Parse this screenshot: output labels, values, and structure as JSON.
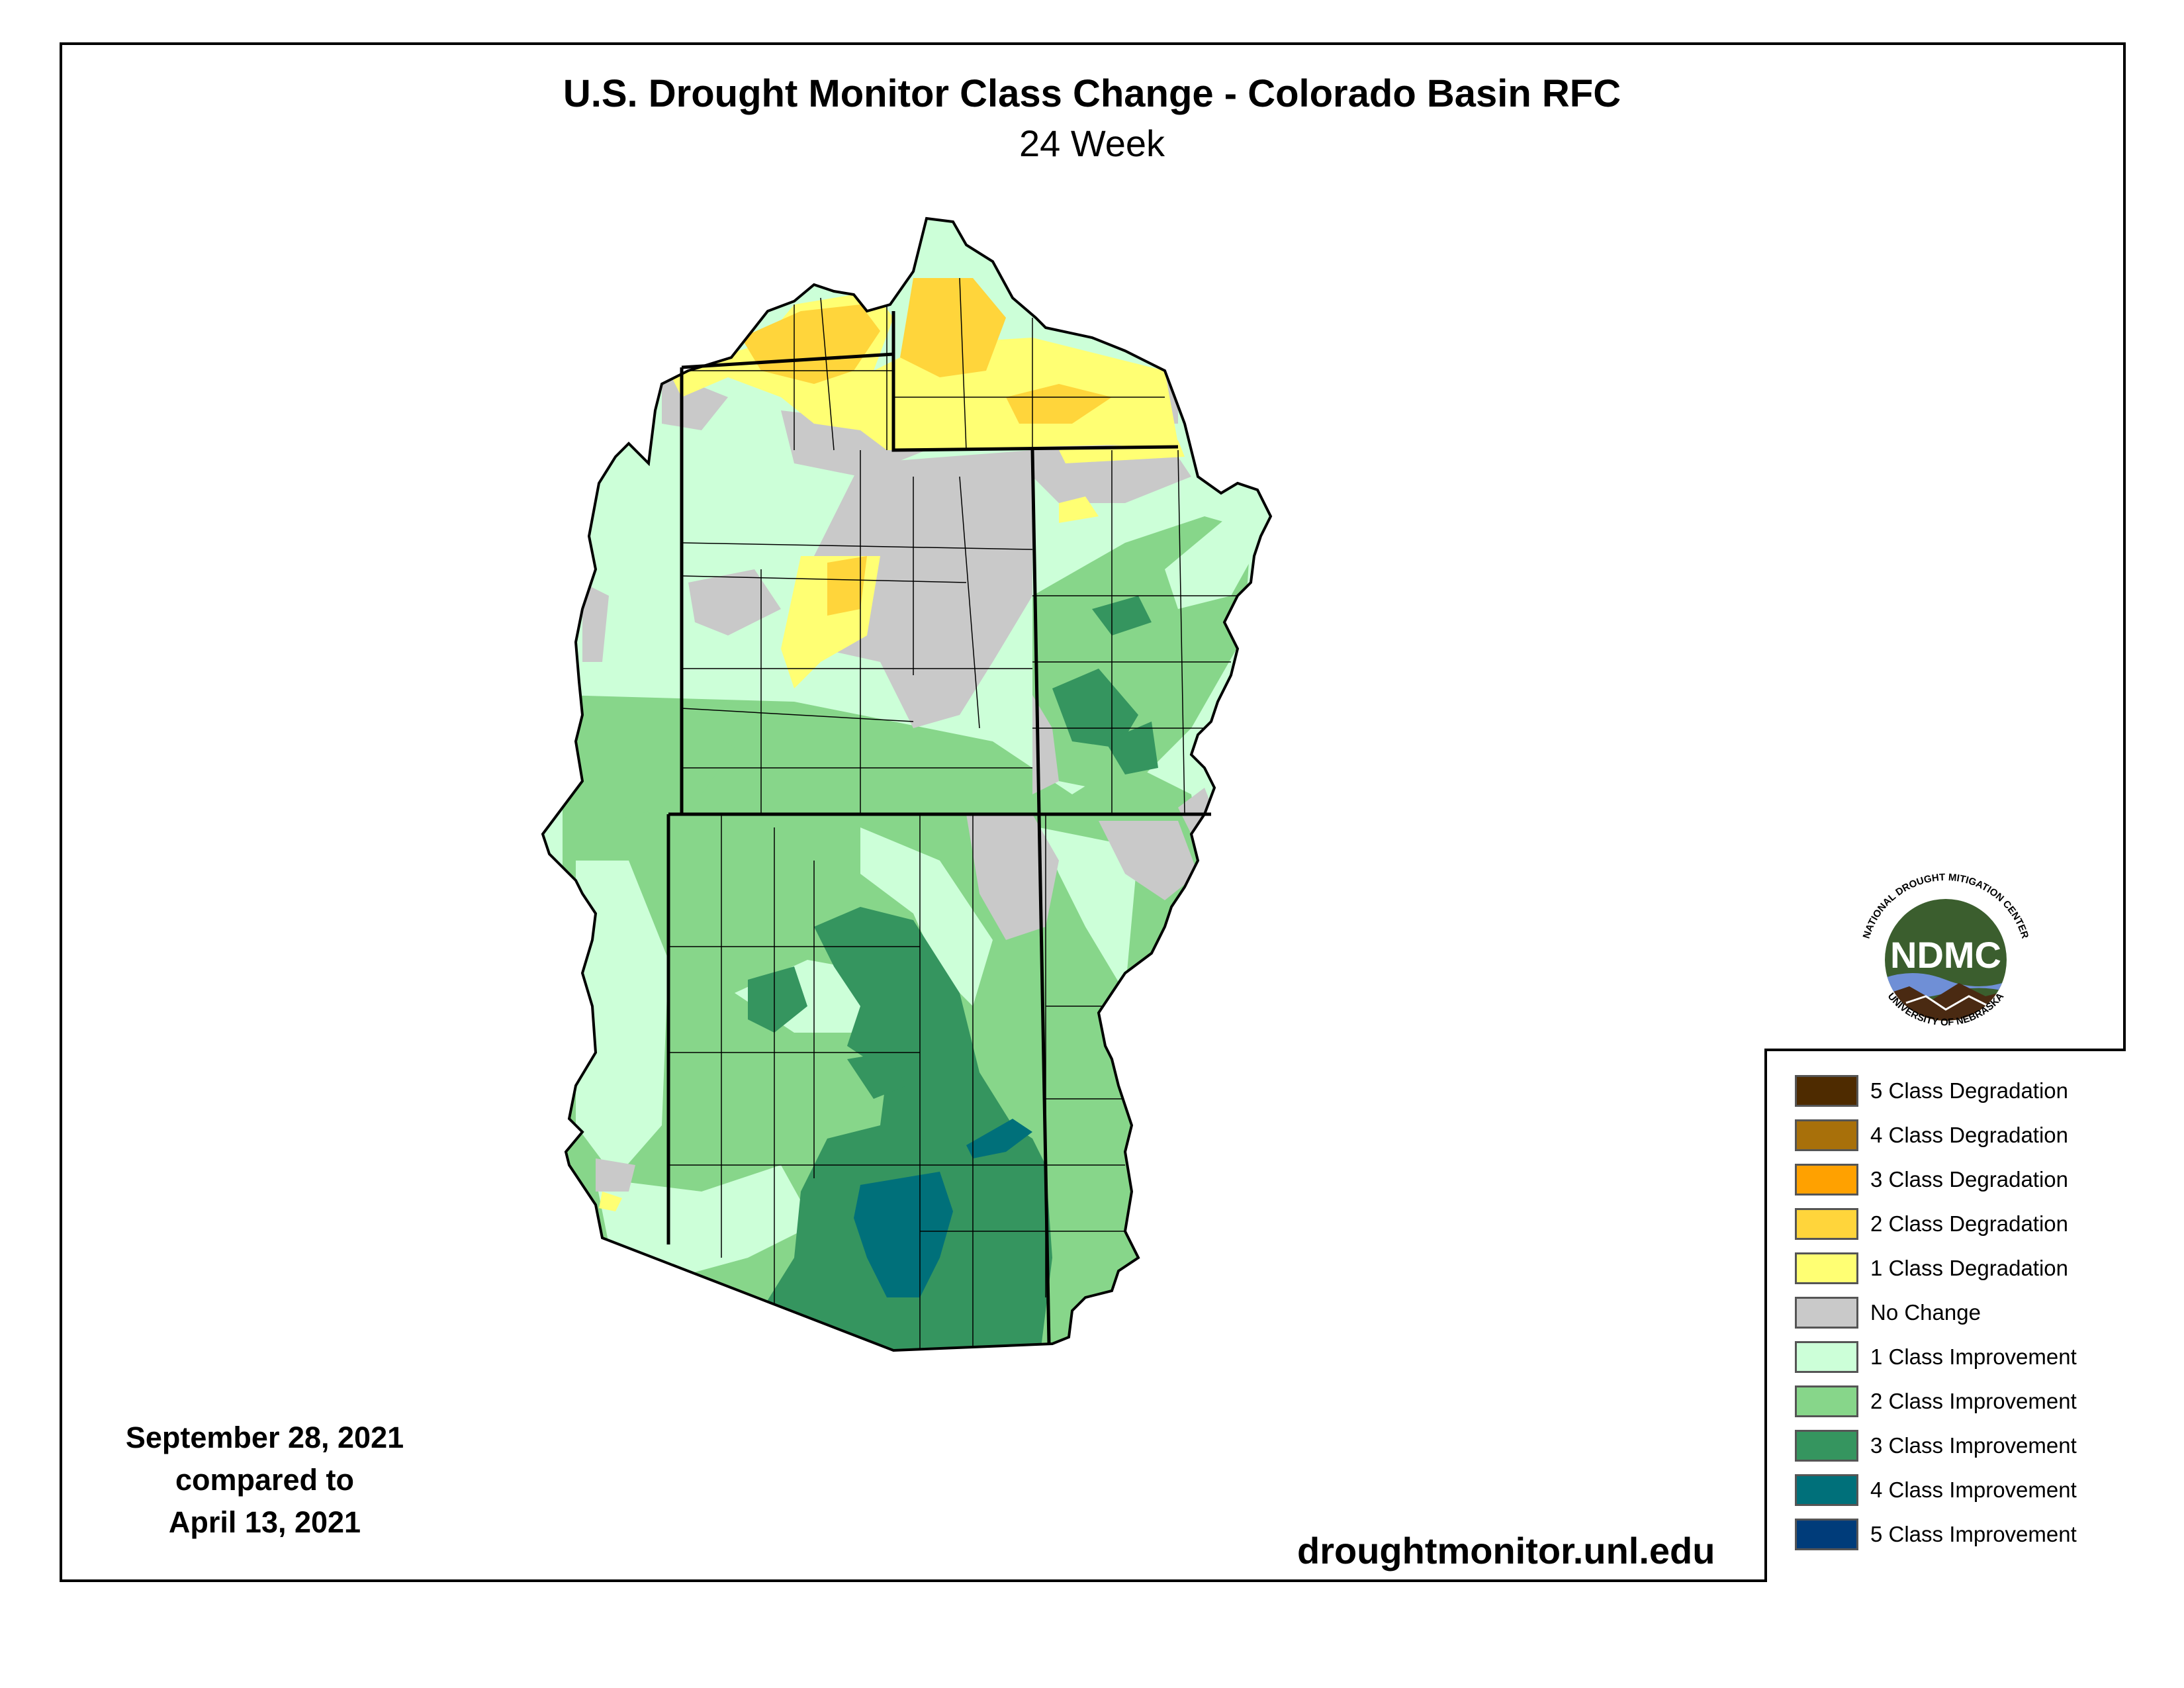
{
  "title": "U.S. Drought Monitor Class Change - Colorado Basin RFC",
  "subtitle": "24 Week",
  "dates": {
    "line1": "September 28, 2021",
    "line2": "compared to",
    "line3": "April 13, 2021"
  },
  "source_url": "droughtmonitor.unl.edu",
  "logo": {
    "abbr": "NDMC",
    "top_text": "NATIONAL DROUGHT MITIGATION CENTER",
    "bottom_text": "UNIVERSITY OF NEBRASKA"
  },
  "legend": [
    {
      "label": "5 Class Degradation",
      "color": "#4e2b00"
    },
    {
      "label": "4 Class Degradation",
      "color": "#a8700a"
    },
    {
      "label": "3 Class Degradation",
      "color": "#ffa100"
    },
    {
      "label": "2 Class Degradation",
      "color": "#ffd53b"
    },
    {
      "label": "1 Class Degradation",
      "color": "#ffff73"
    },
    {
      "label": "No Change",
      "color": "#c9c9c9"
    },
    {
      "label": "1 Class Improvement",
      "color": "#ccffd8"
    },
    {
      "label": "2 Class Improvement",
      "color": "#87d68a"
    },
    {
      "label": "3 Class Improvement",
      "color": "#35955f"
    },
    {
      "label": "4 Class Improvement",
      "color": "#00707a"
    },
    {
      "label": "5 Class Improvement",
      "color": "#003c7a"
    }
  ]
}
